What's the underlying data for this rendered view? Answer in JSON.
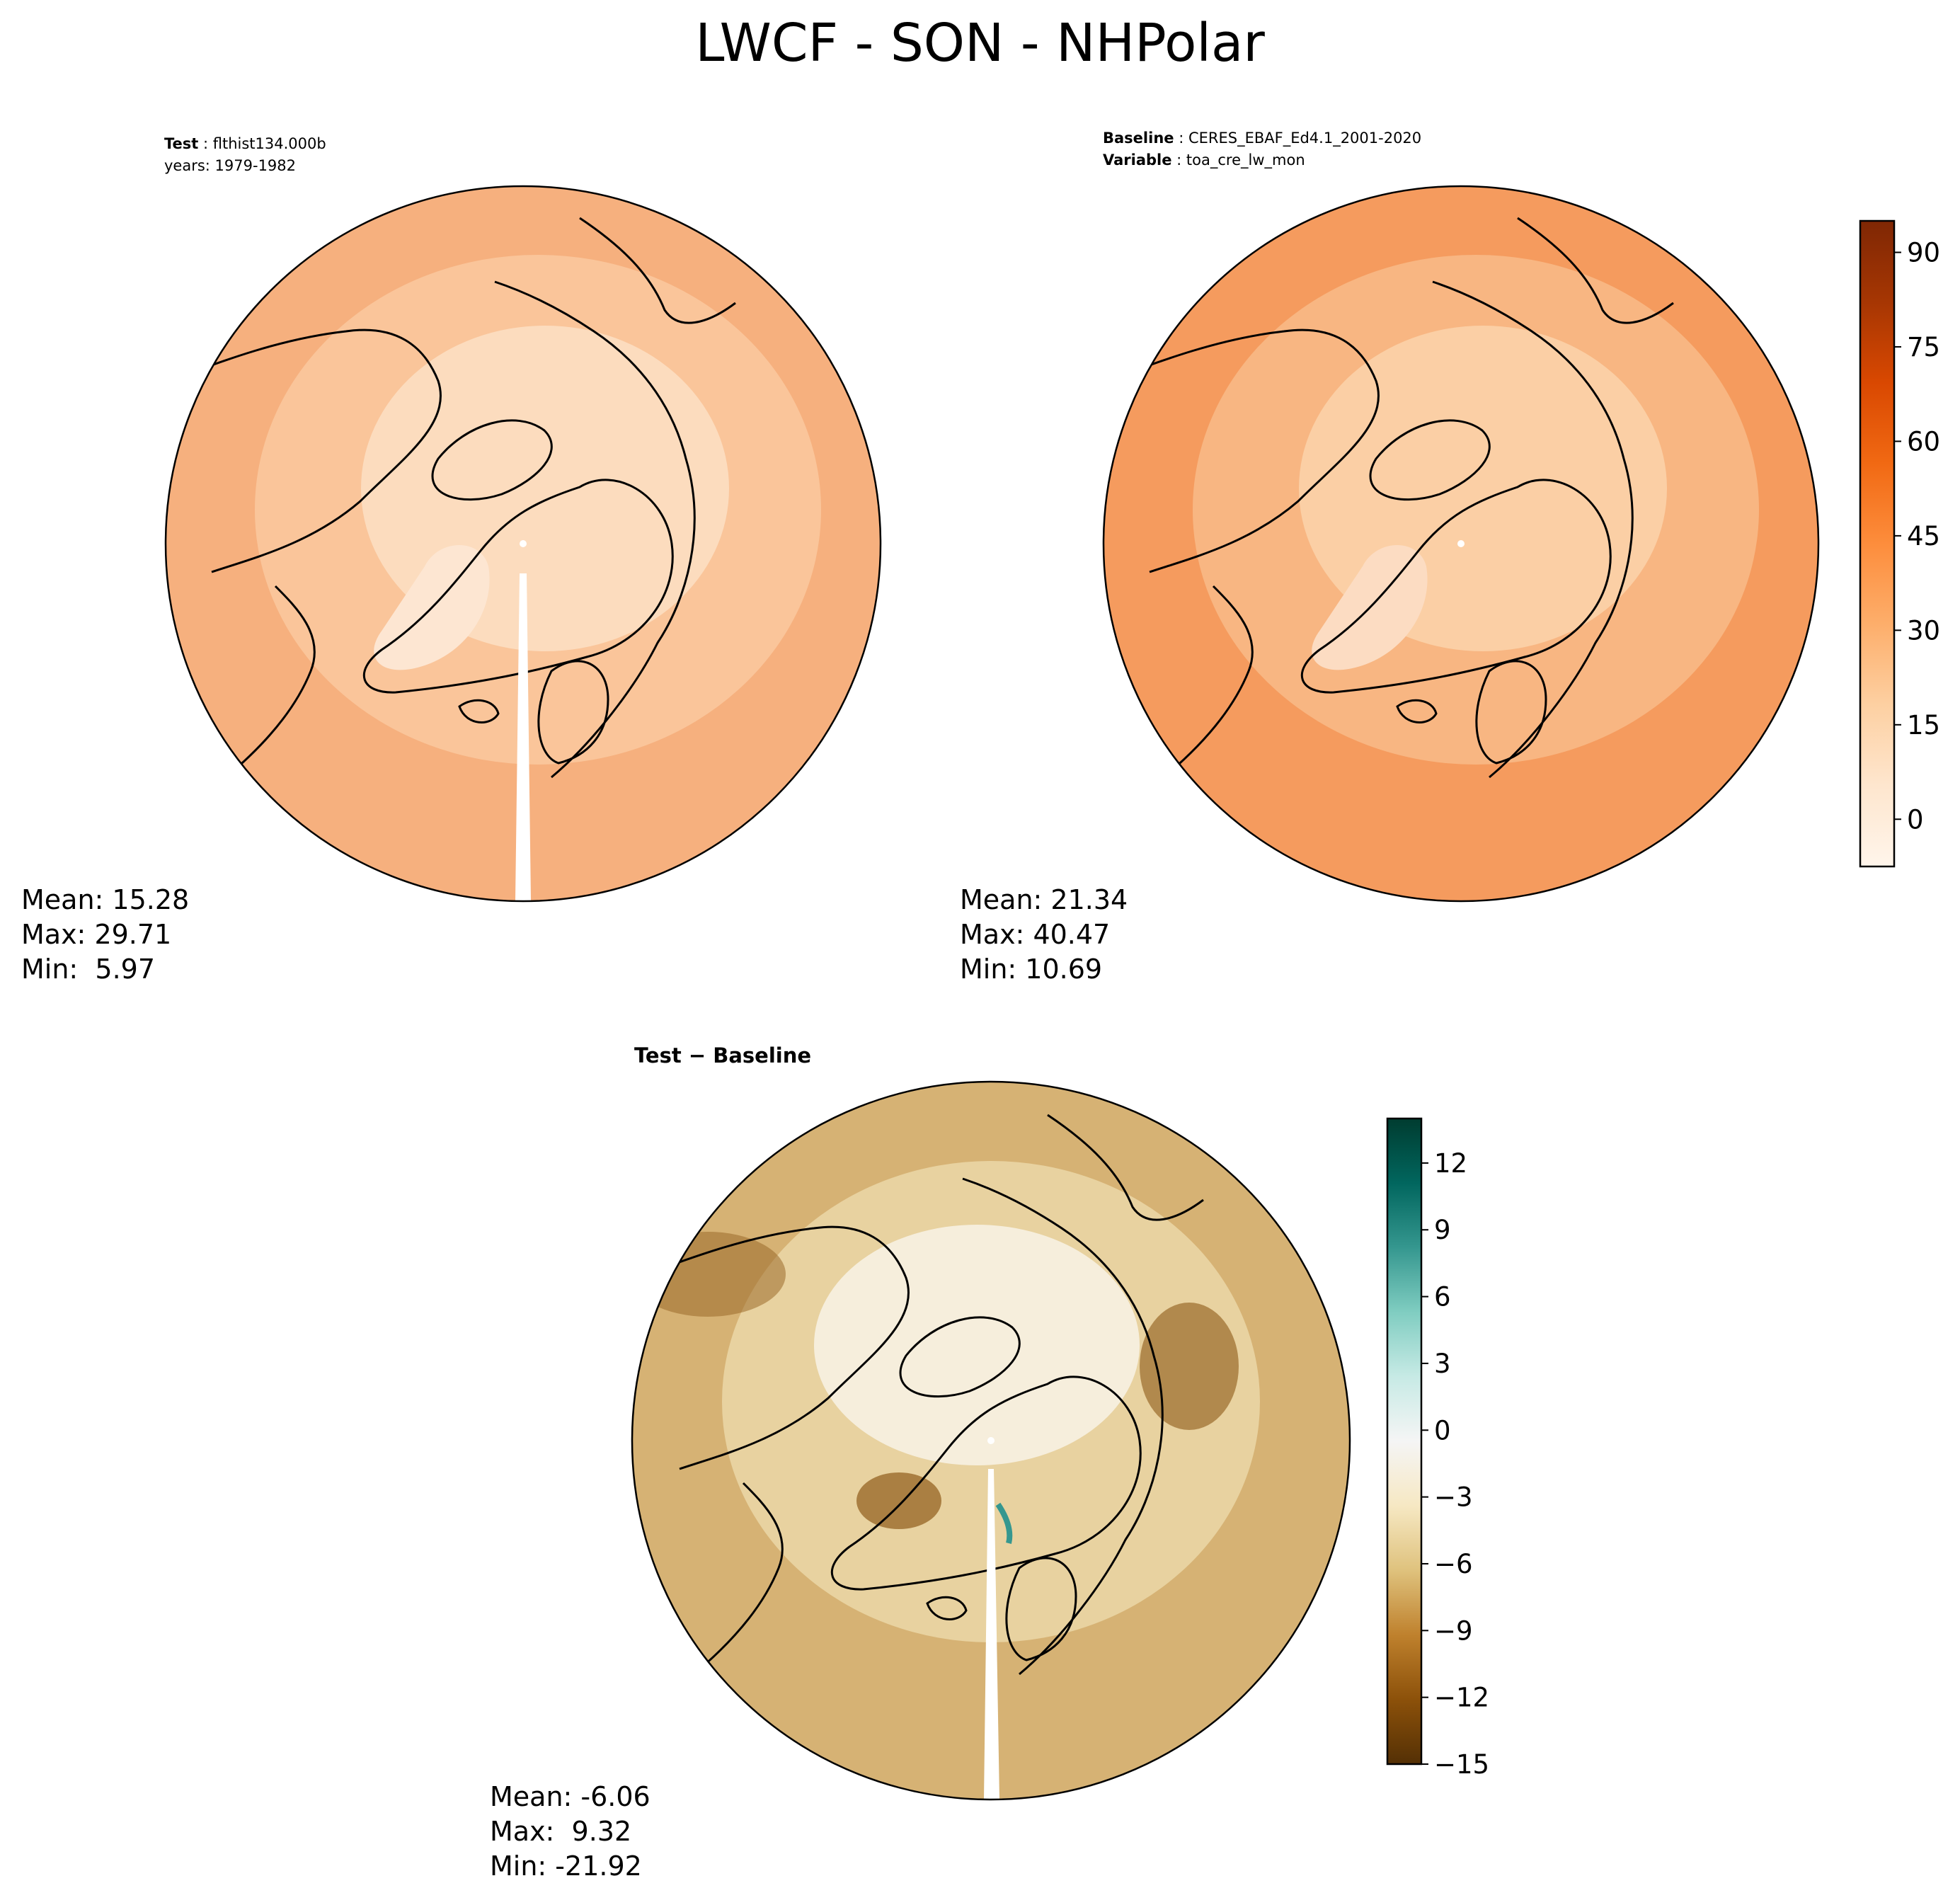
{
  "figure": {
    "title": "LWCF - SON - NHPolar"
  },
  "panels": {
    "test": {
      "label": "Test",
      "case": "flthist134.000b",
      "years_line": "years: 1979-1982",
      "mean": "Mean: 15.28",
      "max": "Max: 29.71",
      "min": "Min:  5.97"
    },
    "baseline": {
      "label": "Baseline",
      "case": "CERES_EBAF_Ed4.1_2001-2020",
      "var_label": "Variable",
      "var": "toa_cre_lw_mon",
      "mean": "Mean: 21.34",
      "max": "Max: 40.47",
      "min": "Min: 10.69"
    },
    "diff": {
      "title_a": "Test",
      "title_sep": " − ",
      "title_b": "Baseline",
      "mean": "Mean: -6.06",
      "max": "Max:  9.32",
      "min": "Min: -21.92"
    }
  },
  "chart_data": [
    {
      "type": "heatmap",
      "name": "Test",
      "projection": "north polar stereographic",
      "field": "LWCF",
      "season": "SON",
      "stats": {
        "mean": 15.28,
        "max": 29.71,
        "min": 5.97
      },
      "colormap": "Oranges"
    },
    {
      "type": "heatmap",
      "name": "Baseline",
      "projection": "north polar stereographic",
      "field": "LWCF",
      "season": "SON",
      "stats": {
        "mean": 21.34,
        "max": 40.47,
        "min": 10.69
      },
      "colormap": "Oranges",
      "colorbar": {
        "ticks": [
          0,
          15,
          30,
          45,
          60,
          75,
          90
        ],
        "range": [
          -7.5,
          95
        ]
      }
    },
    {
      "type": "heatmap",
      "name": "Test - Baseline",
      "projection": "north polar stereographic",
      "stats": {
        "mean": -6.06,
        "max": 9.32,
        "min": -21.92
      },
      "colormap": "BrBG",
      "colorbar": {
        "ticks": [
          -15,
          -12,
          -9,
          -6,
          -3,
          0,
          3,
          6,
          9,
          12
        ],
        "range": [
          -15,
          14
        ]
      }
    }
  ],
  "colors": {
    "oranges": [
      "#fff5eb",
      "#fee6ce",
      "#fdd0a2",
      "#fdae6b",
      "#fd8d3c",
      "#f16913",
      "#d94801",
      "#a63603",
      "#7f2704"
    ],
    "brbg": [
      "#543005",
      "#8c510a",
      "#bf812d",
      "#dfc27d",
      "#f6e8c3",
      "#f5f5f5",
      "#c7eae5",
      "#80cdc1",
      "#35978f",
      "#01665e",
      "#003c30"
    ],
    "test_map": {
      "outer": "#f6b07e",
      "mid": "#fac59a",
      "center": "#fcdcbe",
      "greenland": "#fde6d2"
    },
    "base_map": {
      "outer": "#f59b5e",
      "mid": "#f8b682",
      "center": "#fbcfa5",
      "greenland": "#fcdcc2"
    },
    "diff_map": {
      "outer": "#d6b274",
      "mid": "#e8d2a0",
      "center": "#f6eedc",
      "dark": "#9a6a2a"
    }
  }
}
